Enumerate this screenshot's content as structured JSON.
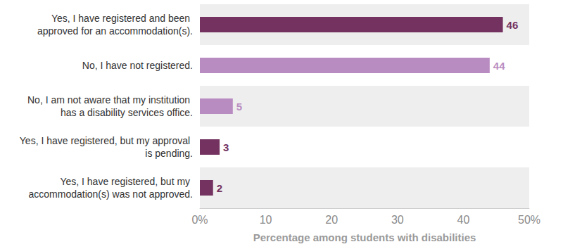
{
  "chart_data": {
    "type": "bar",
    "orientation": "horizontal",
    "categories": [
      "Yes, I have registered and been approved for an accommodation(s).",
      "No, I have not registered.",
      "No, I am not aware that my institution has a disability services office.",
      "Yes, I have registered, but my approval is pending.",
      "Yes, I have registered, but my accommodation(s) was not approved."
    ],
    "values": [
      46,
      44,
      5,
      3,
      2
    ],
    "colors": [
      "#73325f",
      "#b98cc1",
      "#b98cc1",
      "#73325f",
      "#73325f"
    ],
    "xlabel": "Percentage among students with disabilities",
    "xlim": [
      0,
      50
    ],
    "xticks": [
      {
        "value": 0,
        "label": "0%"
      },
      10,
      20,
      30,
      40,
      {
        "value": 50,
        "label": "50%"
      }
    ],
    "data_labels": true,
    "grid": false
  }
}
